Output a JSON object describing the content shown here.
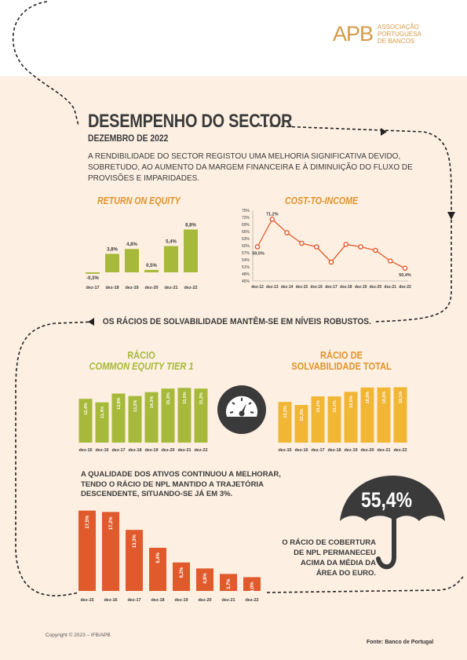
{
  "header": {
    "logo_mark": "APB",
    "logo_lines": [
      "ASSOCIAÇÃO",
      "PORTUGUESA",
      "DE BANCOS"
    ]
  },
  "page": {
    "title": "DESEMPENHO DO SECTOR",
    "subtitle": "DEZEMBRO DE 2022",
    "intro": "A RENDIBILIDADE DO SECTOR REGISTOU UMA MELHORIA SIGNIFICATIVA DEVIDO, SOBRETUDO, AO AUMENTO DA MARGEM FINANCEIRA E À DIMINUIÇÃO DO FLUXO DE PROVISÕES E IMPARIDADES.",
    "solvency_text": "OS RÁCIOS DE SOLVABILIDADE MANTÊM-SE EM NÍVEIS ROBUSTOS.",
    "npl_text": "A QUALIDADE DOS ATIVOS CONTINUOU A MELHORAR, TENDO O RÁCIO DE NPL MANTIDO A TRAJETÓRIA DESCENDENTE, SITUANDO-SE JÁ EM 3%.",
    "coverage_value": "55,4%",
    "coverage_text": "O RÁCIO DE COBERTURA DE NPL PERMANECEU ACIMA DA MÉDIA DA ÁREA DO EURO.",
    "copyright": "Copyright © 2023 – IFB/APB",
    "source": "Fonte: Banco de Portugal"
  },
  "colors": {
    "orange": "#e0932e",
    "green": "#a7b93a",
    "yellow": "#f2b635",
    "red": "#e05a2b",
    "dark": "#3a3a3a",
    "background": "#fdf0e2"
  },
  "icons": [
    "gauge-icon",
    "umbrella-icon"
  ],
  "chart_data": [
    {
      "type": "bar",
      "title": "RETURN ON EQUITY",
      "categories": [
        "dez-17",
        "dez-18",
        "dez-19",
        "dez-20",
        "dez-21",
        "dez-22"
      ],
      "values": [
        -0.3,
        3.8,
        4.8,
        0.5,
        5.4,
        8.8
      ],
      "labels": [
        "-0,3%",
        "3,8%",
        "4,8%",
        "0,5%",
        "5,4%",
        "8,8%"
      ]
    },
    {
      "type": "line",
      "title": "COST-TO-INCOME",
      "categories": [
        "dez-12",
        "dez-13",
        "dez-14",
        "dez-15",
        "dez-16",
        "dez-17",
        "dez-18",
        "dez-19",
        "dez-20",
        "dez-21",
        "dez-22"
      ],
      "values": [
        59.5,
        71.2,
        65.5,
        61,
        59.5,
        53,
        60.5,
        59.5,
        58,
        53.5,
        50.4
      ],
      "point_labels": {
        "0": "59,5%",
        "1": "71,2%",
        "10": "50,4%"
      },
      "yticks": [
        "75%",
        "72%",
        "69%",
        "66%",
        "63%",
        "60%",
        "57%",
        "54%",
        "51%",
        "48%",
        "45%"
      ],
      "ylim": [
        45,
        75
      ]
    },
    {
      "type": "bar",
      "title_lines": [
        "RÁCIO",
        "COMMON EQUITY TIER 1"
      ],
      "categories": [
        "dez-15",
        "dez-16",
        "dez-17",
        "dez-18",
        "dez-19",
        "dez-20",
        "dez-21",
        "dez-22"
      ],
      "values": [
        12.4,
        11.4,
        13.9,
        13.2,
        14.3,
        15.3,
        15.5,
        15.3
      ],
      "labels": [
        "12,4%",
        "11,4%",
        "13,9%",
        "13,2%",
        "14,3%",
        "15,3%",
        "15,5%",
        "15,3%"
      ]
    },
    {
      "type": "bar",
      "title_lines": [
        "RÁCIO DE",
        "SOLVABILIDADE TOTAL"
      ],
      "categories": [
        "dez-15",
        "dez-16",
        "dez-17",
        "dez-18",
        "dez-19",
        "dez-20",
        "dez-21",
        "dez-22"
      ],
      "values": [
        13.3,
        12.3,
        15.1,
        15.1,
        16.6,
        18.0,
        18.0,
        18.1
      ],
      "labels": [
        "13,3%",
        "12,3%",
        "15,1%",
        "15,1%",
        "16,6%",
        "18,0%",
        "18,0%",
        "18,1%"
      ]
    },
    {
      "type": "bar",
      "title": "",
      "categories": [
        "dez-15",
        "dez-16",
        "dez-17",
        "dez-18",
        "dez-19",
        "dez-20",
        "dez-21",
        "dez-22"
      ],
      "values": [
        17.5,
        17.2,
        13.3,
        9.4,
        6.2,
        4.9,
        3.7,
        3.0
      ],
      "labels": [
        "17,5%",
        "17,2%",
        "13,3%",
        "9,4%",
        "6,2%",
        "4,9%",
        "3,7%",
        "3,0%"
      ]
    }
  ]
}
